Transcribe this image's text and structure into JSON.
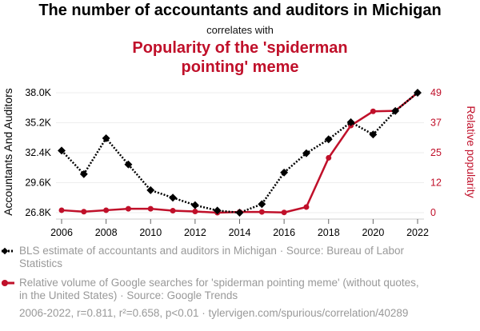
{
  "title": "The number of accountants and auditors in Michigan",
  "subtitle": "correlates with",
  "title2": "Popularity of the 'spiderman pointing' meme",
  "legend": [
    "BLS estimate of accountants and auditors in Michigan · Source: Bureau of Labor Statistics",
    "Relative volume of Google searches for 'spiderman pointing meme' (without quotes, in the United States) · Source: Google Trends"
  ],
  "footer": "2006-2022, r=0.811, r²=0.658, p<0.01 · tylervigen.com/spurious/correlation/40289",
  "chart_data": {
    "type": "line",
    "x": [
      2006,
      2007,
      2008,
      2009,
      2010,
      2011,
      2012,
      2013,
      2014,
      2015,
      2016,
      2017,
      2018,
      2019,
      2020,
      2021,
      2022
    ],
    "xticks": [
      "2006",
      "2008",
      "2010",
      "2012",
      "2014",
      "2016",
      "2018",
      "2020",
      "2022"
    ],
    "ylabel": "Accountants And Auditors",
    "y2label": "Relative popularity",
    "ylim": [
      26.8,
      38.0
    ],
    "y2lim": [
      0,
      49
    ],
    "yticks": [
      "26.8K",
      "29.6K",
      "32.4K",
      "35.2K",
      "38.0K"
    ],
    "y2ticks": [
      "0",
      "12",
      "25",
      "37",
      "49"
    ],
    "grid": true,
    "series": [
      {
        "name": "BLS estimate of accountants and auditors in Michigan",
        "axis": "left",
        "color": "#000000",
        "style": "dotted",
        "marker": "diamond",
        "values": [
          32.6,
          30.4,
          33.75,
          31.3,
          28.9,
          28.2,
          27.5,
          27.0,
          26.8,
          27.6,
          30.55,
          32.35,
          33.65,
          35.25,
          34.1,
          36.3,
          38.0
        ]
      },
      {
        "name": "Relative volume of Google searches for 'spiderman pointing meme'",
        "axis": "right",
        "color": "#c0102a",
        "style": "solid",
        "marker": "circle",
        "values": [
          1,
          0.4,
          1,
          1.6,
          1.6,
          0.8,
          0.5,
          0,
          0.3,
          0.3,
          0.1,
          2.3,
          22.4,
          35.6,
          41.4,
          41.6,
          49
        ]
      }
    ]
  }
}
